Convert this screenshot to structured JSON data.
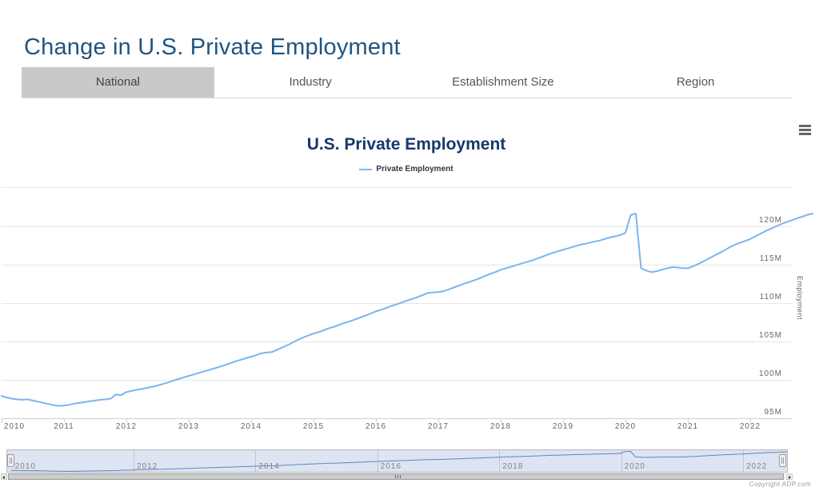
{
  "page": {
    "title": "Change in U.S. Private Employment",
    "copyright": "Copyright ADP.com"
  },
  "tabs": [
    {
      "label": "National",
      "active": true
    },
    {
      "label": "Industry",
      "active": false
    },
    {
      "label": "Establishment Size",
      "active": false
    },
    {
      "label": "Region",
      "active": false
    }
  ],
  "chart": {
    "title": "U.S. Private Employment",
    "legend_label": "Private Employment",
    "y_axis_title": "Employment",
    "menu_icon": "hamburger-icon",
    "colors": {
      "series_line": "#7cb5ec",
      "navigator_line": "#5b8bc7",
      "navigator_mask": "rgba(102,133,194,0.22)",
      "grid": "#e6e6e6",
      "page_title": "#1f5582",
      "chart_title": "#17386b",
      "active_tab_bg": "#c9c9c9"
    }
  },
  "chart_data": {
    "type": "line",
    "title": "U.S. Private Employment",
    "xlabel": "",
    "ylabel": "Employment",
    "unit": "millions of jobs",
    "ylim": [
      95,
      125
    ],
    "yticks": [
      "95M",
      "100M",
      "105M",
      "110M",
      "115M",
      "120M"
    ],
    "xticks": [
      "2010",
      "2011",
      "2012",
      "2013",
      "2014",
      "2015",
      "2016",
      "2017",
      "2018",
      "2019",
      "2020",
      "2021",
      "2022"
    ],
    "navigator_xticks": [
      "2010",
      "2012",
      "2014",
      "2016",
      "2018",
      "2020",
      "2022"
    ],
    "legend_position": "top-center",
    "grid": "horizontal",
    "series": [
      {
        "name": "Private Employment",
        "start": "2010-01",
        "frequency": "monthly",
        "values": [
          97.9,
          97.7,
          97.55,
          97.45,
          97.4,
          97.45,
          97.3,
          97.15,
          97.0,
          96.85,
          96.7,
          96.6,
          96.65,
          96.75,
          96.9,
          97.0,
          97.1,
          97.2,
          97.3,
          97.4,
          97.45,
          97.55,
          98.1,
          98.0,
          98.4,
          98.55,
          98.7,
          98.8,
          98.95,
          99.1,
          99.25,
          99.45,
          99.65,
          99.9,
          100.1,
          100.3,
          100.5,
          100.7,
          100.9,
          101.1,
          101.3,
          101.5,
          101.7,
          101.9,
          102.15,
          102.4,
          102.6,
          102.8,
          103.0,
          103.2,
          103.45,
          103.55,
          103.6,
          103.9,
          104.2,
          104.5,
          104.85,
          105.2,
          105.5,
          105.75,
          106.0,
          106.2,
          106.45,
          106.7,
          106.9,
          107.15,
          107.4,
          107.6,
          107.85,
          108.1,
          108.35,
          108.6,
          108.9,
          109.1,
          109.35,
          109.6,
          109.8,
          110.05,
          110.3,
          110.5,
          110.75,
          111.0,
          111.3,
          111.35,
          111.4,
          111.5,
          111.75,
          112.0,
          112.25,
          112.5,
          112.7,
          112.95,
          113.2,
          113.5,
          113.75,
          114.0,
          114.3,
          114.5,
          114.7,
          114.9,
          115.1,
          115.3,
          115.5,
          115.75,
          116.0,
          116.25,
          116.5,
          116.7,
          116.9,
          117.1,
          117.3,
          117.5,
          117.65,
          117.8,
          117.95,
          118.1,
          118.3,
          118.5,
          118.65,
          118.8,
          119.1,
          121.4,
          121.6,
          114.5,
          114.2,
          114.0,
          114.1,
          114.3,
          114.5,
          114.65,
          114.6,
          114.5,
          114.5,
          114.75,
          115.05,
          115.4,
          115.75,
          116.1,
          116.45,
          116.8,
          117.2,
          117.55,
          117.8,
          118.05,
          118.3,
          118.65,
          119.0,
          119.35,
          119.65,
          119.95,
          120.25,
          120.5,
          120.75,
          121.0,
          121.2,
          121.45,
          121.6
        ]
      }
    ]
  }
}
